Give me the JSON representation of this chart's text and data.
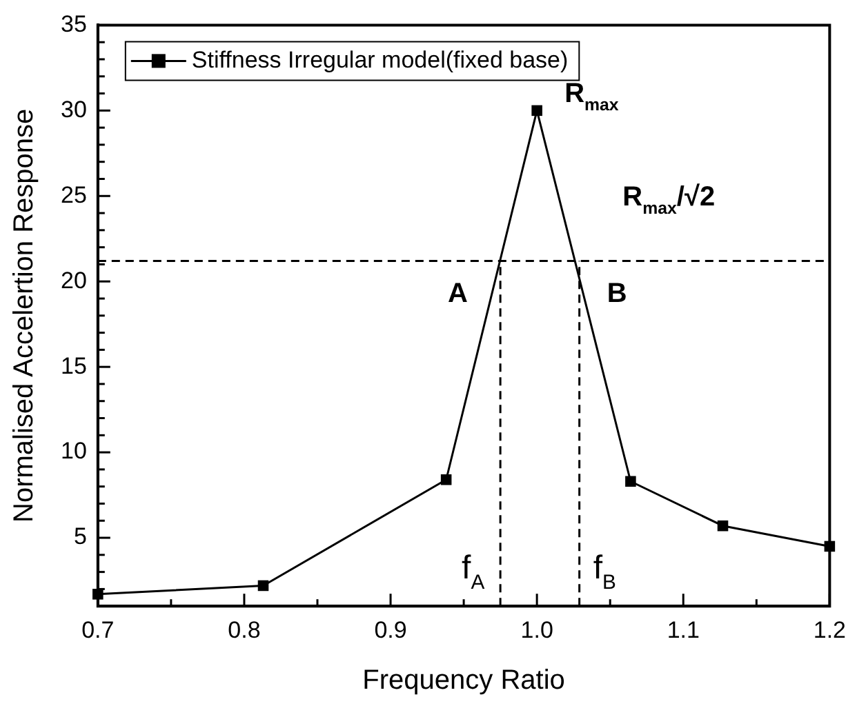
{
  "chart_data": {
    "type": "line",
    "xlabel": "Frequency Ratio",
    "ylabel": "Normalised Accelertion Response",
    "x": [
      0.7,
      0.813,
      0.938,
      1.0,
      1.064,
      1.127,
      1.2
    ],
    "series": [
      {
        "name": "Stiffness Irregular model(fixed base)",
        "color": "#000000",
        "values": [
          1.7,
          2.2,
          8.4,
          30,
          8.3,
          5.7,
          4.5
        ]
      }
    ],
    "marker": "square",
    "line_style": "solid",
    "legend": "top left",
    "grid": false,
    "xlim": [
      0.7,
      1.2
    ],
    "xticks": [
      0.7,
      {
        "value": 0.75,
        "label": null
      },
      0.8,
      {
        "value": 0.85,
        "label": null
      },
      0.9,
      {
        "value": 0.95,
        "label": null
      },
      {
        "value": 1.0,
        "label": "1.0"
      },
      {
        "value": 1.05,
        "label": null
      },
      1.1,
      {
        "value": 1.15,
        "label": null
      },
      1.2
    ],
    "ylim": [
      1,
      35
    ],
    "yticks": [
      {
        "value": 2,
        "label": null
      },
      {
        "value": 3,
        "label": null
      },
      {
        "value": 4,
        "label": null
      },
      5,
      {
        "value": 6,
        "label": null
      },
      {
        "value": 7,
        "label": null
      },
      {
        "value": 8,
        "label": null
      },
      {
        "value": 9,
        "label": null
      },
      10,
      {
        "value": 11,
        "label": null
      },
      {
        "value": 12,
        "label": null
      },
      {
        "value": 13,
        "label": null
      },
      {
        "value": 14,
        "label": null
      },
      15,
      {
        "value": 16,
        "label": null
      },
      {
        "value": 17,
        "label": null
      },
      {
        "value": 18,
        "label": null
      },
      {
        "value": 19,
        "label": null
      },
      20,
      {
        "value": 21,
        "label": null
      },
      {
        "value": 22,
        "label": null
      },
      {
        "value": 23,
        "label": null
      },
      {
        "value": 24,
        "label": null
      },
      25,
      {
        "value": 26,
        "label": null
      },
      {
        "value": 27,
        "label": null
      },
      {
        "value": 28,
        "label": null
      },
      {
        "value": 29,
        "label": null
      },
      30,
      {
        "value": 31,
        "label": null
      },
      {
        "value": 32,
        "label": null
      },
      {
        "value": 33,
        "label": null
      },
      {
        "value": 34,
        "label": null
      },
      35
    ],
    "ref_lines": [
      {
        "axis": "y",
        "value": 21.2,
        "label": "R$_{max}$/√2",
        "line_style": "dashed",
        "color": "#000000"
      },
      {
        "axis": "x",
        "value": 0.975,
        "label": "f$_{A}$",
        "line_style": "dashed",
        "color": "#000000"
      },
      {
        "axis": "x",
        "value": 1.029,
        "label": "f$_{B}$",
        "line_style": "dashed",
        "color": "#000000"
      }
    ],
    "annotations": [
      {
        "text": "R$_{max}$",
        "x": 1.0,
        "y": 30
      },
      {
        "text": "A",
        "x": 0.975,
        "y": 21.2
      },
      {
        "text": "B",
        "x": 1.029,
        "y": 21.2
      }
    ]
  }
}
